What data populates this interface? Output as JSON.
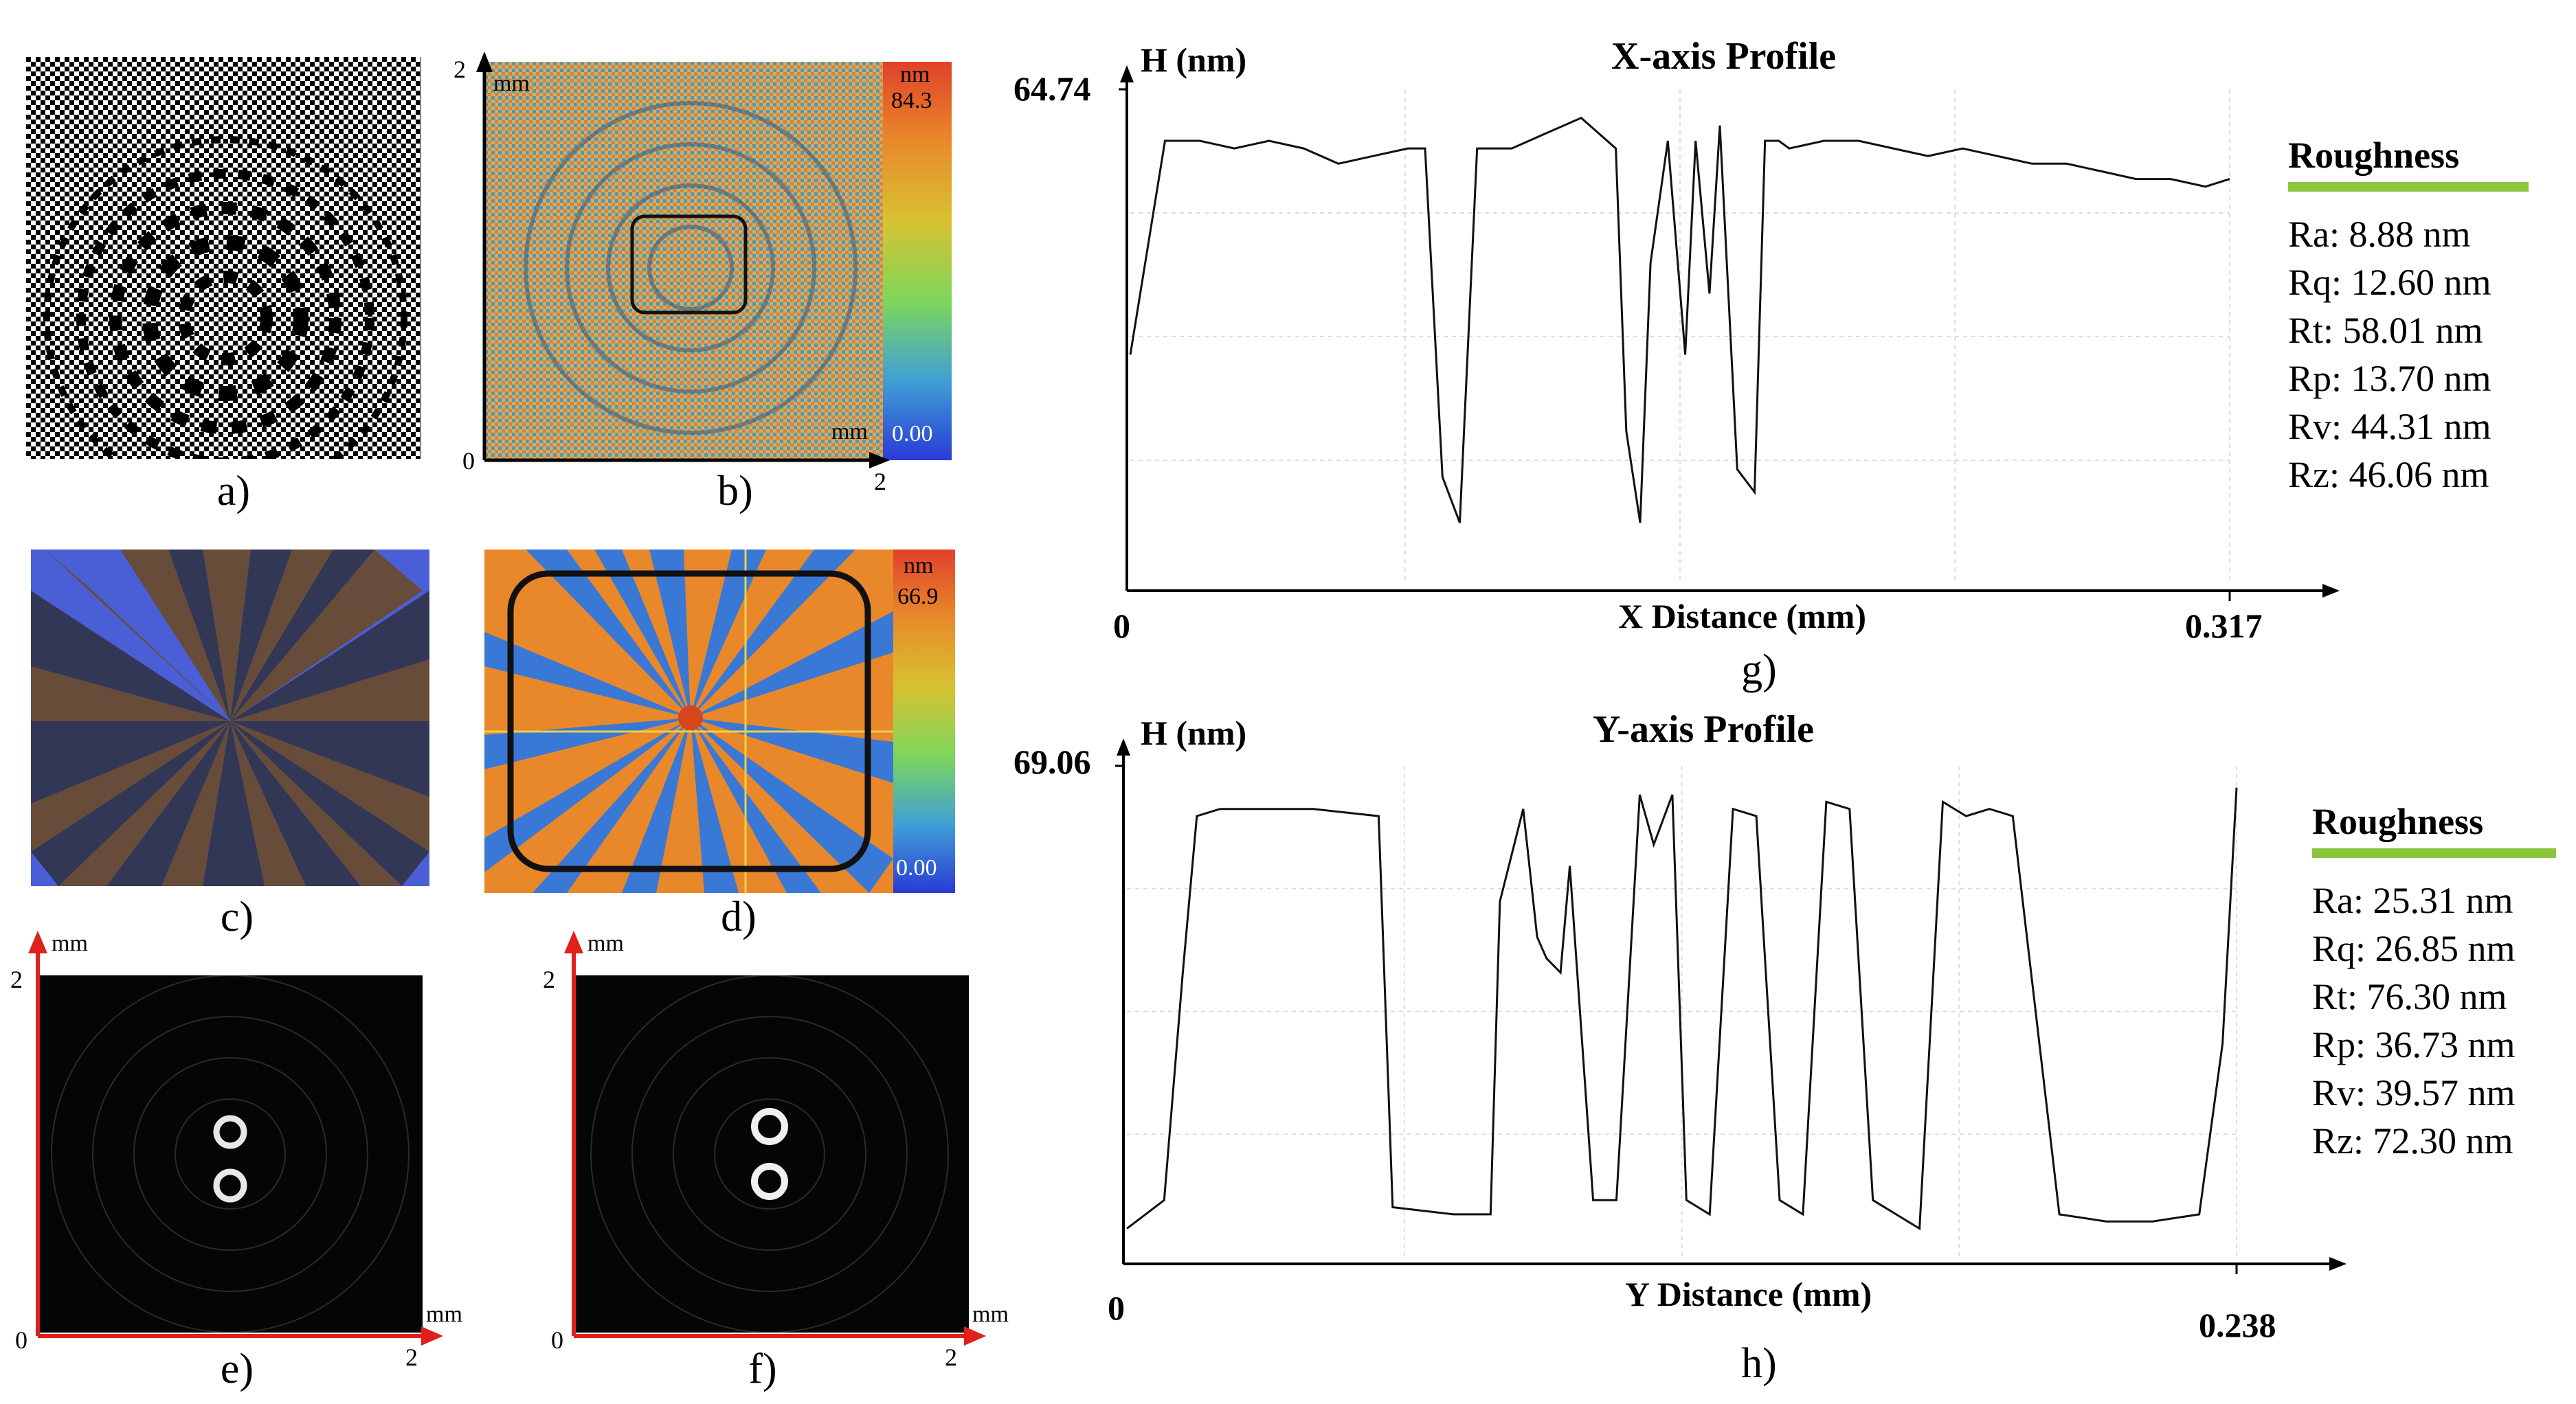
{
  "panels": {
    "a": {
      "label": "a)"
    },
    "b": {
      "label": "b)",
      "axis_y_max": "2",
      "axis_x_max": "2",
      "origin": "0",
      "unit_top": "mm",
      "unit_bottom": "mm",
      "colorbar_unit": "nm",
      "colorbar_max": "84.3",
      "colorbar_min": "0.00"
    },
    "c": {
      "label": "c)"
    },
    "d": {
      "label": "d)",
      "colorbar_unit": "nm",
      "colorbar_max": "66.9",
      "colorbar_min": "0.00"
    },
    "e": {
      "label": "e)",
      "axis_y_max": "2",
      "axis_x_max": "2",
      "origin": "0",
      "unit_top": "mm",
      "unit_right": "mm"
    },
    "f": {
      "label": "f)",
      "axis_y_max": "2",
      "axis_x_max": "2",
      "origin": "0",
      "unit_top": "mm",
      "unit_right": "mm"
    },
    "g": {
      "label": "g)"
    },
    "h": {
      "label": "h)"
    }
  },
  "chart_data": [
    {
      "type": "line",
      "title": "X-axis Profile",
      "xlabel": "X Distance (mm)",
      "ylabel": "H (nm)",
      "y_max_label": "64.74",
      "x_min_label": "0",
      "x_max_label": "0.317",
      "xlim": [
        0,
        0.317
      ],
      "ylim": [
        0,
        64.74
      ],
      "grid": true,
      "series": [
        {
          "x": [
            0.0,
            0.01,
            0.02,
            0.03,
            0.04,
            0.05,
            0.06,
            0.07,
            0.08,
            0.085,
            0.09,
            0.095,
            0.1,
            0.11,
            0.12,
            0.13,
            0.14,
            0.143,
            0.147,
            0.15,
            0.155,
            0.16,
            0.163,
            0.167,
            0.17,
            0.175,
            0.18,
            0.183,
            0.187,
            0.19,
            0.2,
            0.21,
            0.22,
            0.23,
            0.24,
            0.25,
            0.26,
            0.27,
            0.28,
            0.29,
            0.3,
            0.31,
            0.317
          ],
          "y": [
            30,
            58,
            58,
            57,
            58,
            57,
            55,
            56,
            57,
            57,
            14,
            8,
            57,
            57,
            59,
            61,
            57,
            20,
            8,
            42,
            58,
            30,
            58,
            38,
            60,
            15,
            12,
            58,
            58,
            57,
            58,
            58,
            57,
            56,
            57,
            56,
            55,
            55,
            54,
            53,
            53,
            52,
            53
          ]
        }
      ],
      "roughness_title": "Roughness",
      "roughness": [
        "Ra: 8.88 nm",
        "Rq: 12.60 nm",
        "Rt: 58.01 nm",
        "Rp: 13.70 nm",
        "Rv: 44.31 nm",
        "Rz: 46.06 nm"
      ]
    },
    {
      "type": "line",
      "title": "Y-axis Profile",
      "xlabel": "Y Distance (mm)",
      "ylabel": "H (nm)",
      "y_max_label": "69.06",
      "x_min_label": "0",
      "x_max_label": "0.238",
      "xlim": [
        0,
        0.238
      ],
      "ylim": [
        0,
        69.06
      ],
      "grid": true,
      "series": [
        {
          "x": [
            0.0,
            0.008,
            0.012,
            0.015,
            0.02,
            0.03,
            0.04,
            0.054,
            0.057,
            0.07,
            0.078,
            0.08,
            0.085,
            0.088,
            0.09,
            0.093,
            0.095,
            0.1,
            0.105,
            0.11,
            0.113,
            0.117,
            0.12,
            0.125,
            0.13,
            0.135,
            0.14,
            0.145,
            0.15,
            0.155,
            0.16,
            0.165,
            0.17,
            0.175,
            0.18,
            0.185,
            0.19,
            0.2,
            0.21,
            0.22,
            0.23,
            0.235,
            0.238
          ],
          "y": [
            4,
            8,
            40,
            62,
            63,
            63,
            63,
            62,
            7,
            6,
            6,
            50,
            63,
            45,
            42,
            40,
            55,
            8,
            8,
            65,
            58,
            65,
            8,
            6,
            63,
            62,
            8,
            6,
            64,
            63,
            8,
            6,
            4,
            64,
            62,
            63,
            62,
            6,
            5,
            5,
            6,
            30,
            66
          ]
        }
      ],
      "roughness_title": "Roughness",
      "roughness": [
        "Ra: 25.31 nm",
        "Rq: 26.85 nm",
        "Rt: 76.30 nm",
        "Rp: 36.73 nm",
        "Rv: 39.57 nm",
        "Rz: 72.30 nm"
      ]
    }
  ]
}
